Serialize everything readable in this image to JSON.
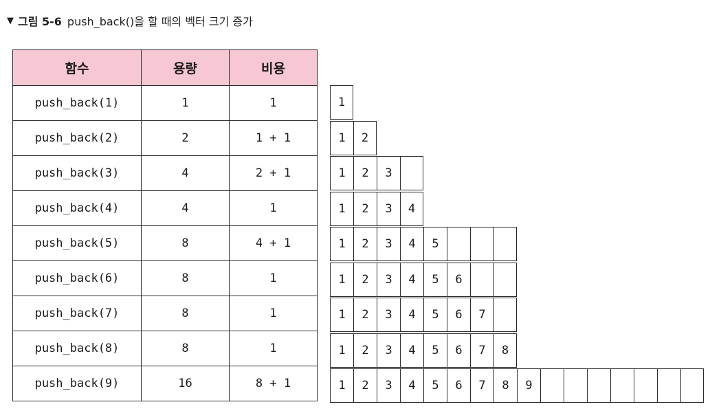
{
  "caption": {
    "marker": "▼",
    "figure": "그림 5-6",
    "title": "push_back()을 할 때의 벡터 크기 증가"
  },
  "table": {
    "headers": [
      "함수",
      "용량",
      "비용"
    ],
    "rows": [
      {
        "func": "push_back(1)",
        "capacity": "1",
        "cost": "1"
      },
      {
        "func": "push_back(2)",
        "capacity": "2",
        "cost": "1 + 1"
      },
      {
        "func": "push_back(3)",
        "capacity": "4",
        "cost": "2 + 1"
      },
      {
        "func": "push_back(4)",
        "capacity": "4",
        "cost": "1"
      },
      {
        "func": "push_back(5)",
        "capacity": "8",
        "cost": "4 + 1"
      },
      {
        "func": "push_back(6)",
        "capacity": "8",
        "cost": "1"
      },
      {
        "func": "push_back(7)",
        "capacity": "8",
        "cost": "1"
      },
      {
        "func": "push_back(8)",
        "capacity": "8",
        "cost": "1"
      },
      {
        "func": "push_back(9)",
        "capacity": "16",
        "cost": "8 + 1"
      }
    ]
  },
  "vectors": [
    {
      "capacity": 1,
      "elements": [
        "1"
      ]
    },
    {
      "capacity": 2,
      "elements": [
        "1",
        "2"
      ]
    },
    {
      "capacity": 4,
      "elements": [
        "1",
        "2",
        "3"
      ]
    },
    {
      "capacity": 4,
      "elements": [
        "1",
        "2",
        "3",
        "4"
      ]
    },
    {
      "capacity": 8,
      "elements": [
        "1",
        "2",
        "3",
        "4",
        "5"
      ]
    },
    {
      "capacity": 8,
      "elements": [
        "1",
        "2",
        "3",
        "4",
        "5",
        "6"
      ]
    },
    {
      "capacity": 8,
      "elements": [
        "1",
        "2",
        "3",
        "4",
        "5",
        "6",
        "7"
      ]
    },
    {
      "capacity": 8,
      "elements": [
        "1",
        "2",
        "3",
        "4",
        "5",
        "6",
        "7",
        "8"
      ]
    },
    {
      "capacity": 16,
      "elements": [
        "1",
        "2",
        "3",
        "4",
        "5",
        "6",
        "7",
        "8",
        "9"
      ]
    }
  ]
}
